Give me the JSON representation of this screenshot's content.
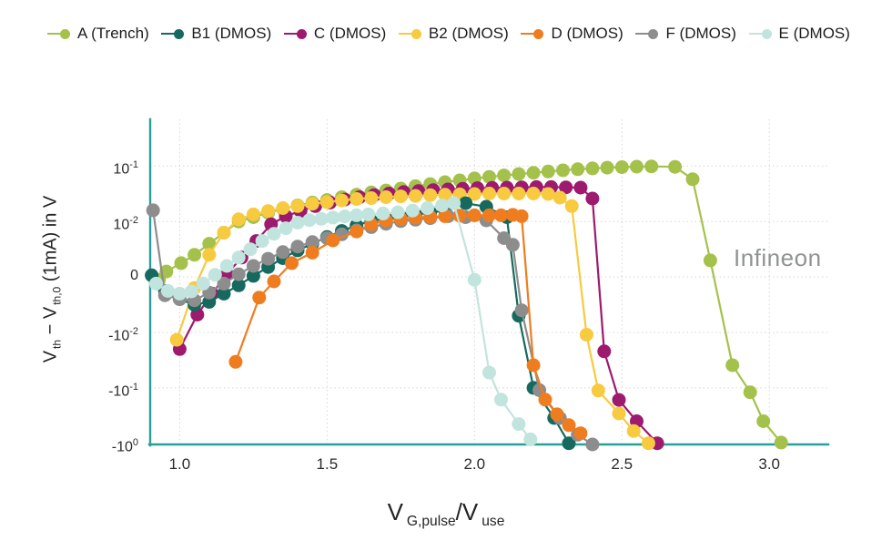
{
  "chart_data": {
    "type": "line",
    "title": "",
    "watermark": "Infineon",
    "grid": true,
    "legend_position": "top",
    "xlim": [
      0.9,
      3.2
    ],
    "ylim": [
      -1.05,
      0.7
    ],
    "y_scale": {
      "type": "symlog",
      "linthresh": 0.01
    },
    "xlabel_segments": [
      {
        "t": "V"
      },
      {
        "s": "G,pulse"
      },
      {
        "t": "/V"
      },
      {
        "s": "use"
      }
    ],
    "ylabel_segments": [
      {
        "t": "V"
      },
      {
        "s": "th"
      },
      {
        "t": " − V"
      },
      {
        "s": "th,0"
      },
      {
        "t": " (1mA) in V"
      }
    ],
    "x_ticks": [
      {
        "label": "1.0",
        "v": 1.0
      },
      {
        "label": "1.5",
        "v": 1.5
      },
      {
        "label": "2.0",
        "v": 2.0
      },
      {
        "label": "2.5",
        "v": 2.5
      },
      {
        "label": "3.0",
        "v": 3.0
      }
    ],
    "y_ticks": [
      {
        "sign": "",
        "base": "10",
        "exp": "-1",
        "v": 0.1
      },
      {
        "sign": "",
        "base": "10",
        "exp": "-2",
        "v": 0.01
      },
      {
        "sign": "",
        "base": "0",
        "exp": "",
        "v": 0
      },
      {
        "sign": "-",
        "base": "10",
        "exp": "-2",
        "v": -0.01
      },
      {
        "sign": "-",
        "base": "10",
        "exp": "-1",
        "v": -0.1
      },
      {
        "sign": "-",
        "base": "10",
        "exp": "0",
        "v": -1
      }
    ],
    "series": [
      {
        "name": "A (Trench)",
        "color": "#a4c24b",
        "points": [
          [
            0.93,
            -0.0005
          ],
          [
            0.955,
            0.001
          ],
          [
            1.005,
            0.0025
          ],
          [
            1.05,
            0.004
          ],
          [
            1.1,
            0.006
          ],
          [
            1.15,
            0.008
          ],
          [
            1.2,
            0.01
          ],
          [
            1.25,
            0.012
          ],
          [
            1.3,
            0.0145
          ],
          [
            1.35,
            0.017
          ],
          [
            1.4,
            0.0195
          ],
          [
            1.45,
            0.022
          ],
          [
            1.5,
            0.0245
          ],
          [
            1.55,
            0.0275
          ],
          [
            1.6,
            0.0305
          ],
          [
            1.65,
            0.0335
          ],
          [
            1.7,
            0.0365
          ],
          [
            1.75,
            0.0395
          ],
          [
            1.8,
            0.0435
          ],
          [
            1.85,
            0.0475
          ],
          [
            1.9,
            0.0515
          ],
          [
            1.95,
            0.0555
          ],
          [
            2.0,
            0.06
          ],
          [
            2.05,
            0.064
          ],
          [
            2.1,
            0.068
          ],
          [
            2.15,
            0.072
          ],
          [
            2.2,
            0.076
          ],
          [
            2.25,
            0.08
          ],
          [
            2.3,
            0.084
          ],
          [
            2.35,
            0.088
          ],
          [
            2.4,
            0.091
          ],
          [
            2.45,
            0.094
          ],
          [
            2.5,
            0.096
          ],
          [
            2.55,
            0.098
          ],
          [
            2.6,
            0.099
          ],
          [
            2.68,
            0.097
          ],
          [
            2.74,
            0.058
          ],
          [
            2.8,
            0.003
          ],
          [
            2.875,
            -0.039
          ],
          [
            2.935,
            -0.12
          ],
          [
            2.98,
            -0.4
          ],
          [
            3.04,
            -0.97
          ]
        ]
      },
      {
        "name": "C (DMOS)",
        "color": "#9d1a6e",
        "points": [
          [
            1.0,
            -0.02
          ],
          [
            1.06,
            -0.0068
          ],
          [
            1.11,
            -0.003
          ],
          [
            1.16,
            0.0005
          ],
          [
            1.21,
            0.0035
          ],
          [
            1.26,
            0.0065
          ],
          [
            1.31,
            0.0095
          ],
          [
            1.36,
            0.0125
          ],
          [
            1.41,
            0.0155
          ],
          [
            1.46,
            0.019
          ],
          [
            1.51,
            0.022
          ],
          [
            1.56,
            0.025
          ],
          [
            1.61,
            0.0275
          ],
          [
            1.66,
            0.03
          ],
          [
            1.71,
            0.032
          ],
          [
            1.76,
            0.034
          ],
          [
            1.81,
            0.0355
          ],
          [
            1.86,
            0.037
          ],
          [
            1.91,
            0.038
          ],
          [
            1.96,
            0.039
          ],
          [
            2.01,
            0.04
          ],
          [
            2.06,
            0.0405
          ],
          [
            2.11,
            0.041
          ],
          [
            2.16,
            0.0415
          ],
          [
            2.21,
            0.042
          ],
          [
            2.26,
            0.042
          ],
          [
            2.31,
            0.0415
          ],
          [
            2.36,
            0.041
          ],
          [
            2.4,
            0.026
          ],
          [
            2.44,
            -0.022
          ],
          [
            2.49,
            -0.165
          ],
          [
            2.55,
            -0.4
          ],
          [
            2.62,
            -1.0
          ]
        ]
      },
      {
        "name": "B2 (DMOS)",
        "color": "#f7ca40",
        "points": [
          [
            0.99,
            -0.0136
          ],
          [
            1.05,
            -0.002
          ],
          [
            1.1,
            0.004
          ],
          [
            1.15,
            0.008
          ],
          [
            1.2,
            0.011
          ],
          [
            1.25,
            0.0135
          ],
          [
            1.3,
            0.0155
          ],
          [
            1.35,
            0.0175
          ],
          [
            1.4,
            0.019
          ],
          [
            1.45,
            0.021
          ],
          [
            1.5,
            0.0225
          ],
          [
            1.55,
            0.024
          ],
          [
            1.6,
            0.0255
          ],
          [
            1.65,
            0.0265
          ],
          [
            1.7,
            0.0275
          ],
          [
            1.75,
            0.0285
          ],
          [
            1.8,
            0.029
          ],
          [
            1.85,
            0.03
          ],
          [
            1.9,
            0.0305
          ],
          [
            1.95,
            0.031
          ],
          [
            2.0,
            0.0315
          ],
          [
            2.05,
            0.032
          ],
          [
            2.1,
            0.032
          ],
          [
            2.15,
            0.032
          ],
          [
            2.2,
            0.032
          ],
          [
            2.25,
            0.0315
          ],
          [
            2.29,
            0.027
          ],
          [
            2.33,
            0.019
          ],
          [
            2.38,
            -0.011
          ],
          [
            2.42,
            -0.112
          ],
          [
            2.49,
            -0.29
          ],
          [
            2.54,
            -0.6
          ],
          [
            2.59,
            -1.0
          ]
        ]
      },
      {
        "name": "B1 (DMOS)",
        "color": "#16695e",
        "points": [
          [
            0.905,
            0.0003
          ],
          [
            0.95,
            -0.0025
          ],
          [
            1.0,
            -0.004
          ],
          [
            1.05,
            -0.005
          ],
          [
            1.1,
            -0.0045
          ],
          [
            1.15,
            -0.003
          ],
          [
            1.2,
            -0.0015
          ],
          [
            1.25,
            0.0002
          ],
          [
            1.3,
            0.0018
          ],
          [
            1.35,
            0.0034
          ],
          [
            1.4,
            0.0048
          ],
          [
            1.45,
            0.006
          ],
          [
            1.5,
            0.0072
          ],
          [
            1.55,
            0.0083
          ],
          [
            1.6,
            0.0093
          ],
          [
            1.65,
            0.0103
          ],
          [
            1.7,
            0.0113
          ],
          [
            1.75,
            0.0123
          ],
          [
            1.8,
            0.0133
          ],
          [
            1.85,
            0.0145
          ],
          [
            1.9,
            0.016
          ],
          [
            1.97,
            0.0215
          ],
          [
            2.04,
            0.0185
          ],
          [
            2.11,
            0.012
          ],
          [
            2.15,
            -0.007
          ],
          [
            2.2,
            -0.1
          ],
          [
            2.27,
            -0.35
          ],
          [
            2.32,
            -1.0
          ]
        ]
      },
      {
        "name": "F (DMOS)",
        "color": "#8d8d8d",
        "points": [
          [
            0.91,
            0.016
          ],
          [
            0.95,
            -0.0033
          ],
          [
            1.0,
            -0.004
          ],
          [
            1.05,
            -0.0042
          ],
          [
            1.1,
            -0.0028
          ],
          [
            1.15,
            -0.0012
          ],
          [
            1.2,
            0.0005
          ],
          [
            1.25,
            0.002
          ],
          [
            1.3,
            0.0033
          ],
          [
            1.35,
            0.0045
          ],
          [
            1.4,
            0.0055
          ],
          [
            1.45,
            0.0063
          ],
          [
            1.5,
            0.007
          ],
          [
            1.55,
            0.0077
          ],
          [
            1.6,
            0.0084
          ],
          [
            1.65,
            0.009
          ],
          [
            1.7,
            0.0096
          ],
          [
            1.75,
            0.0102
          ],
          [
            1.8,
            0.0108
          ],
          [
            1.85,
            0.0115
          ],
          [
            1.91,
            0.0125
          ],
          [
            1.97,
            0.012
          ],
          [
            2.04,
            0.0105
          ],
          [
            2.1,
            0.007
          ],
          [
            2.13,
            0.0058
          ],
          [
            2.16,
            -0.006
          ],
          [
            2.22,
            -0.11
          ],
          [
            2.29,
            -0.35
          ],
          [
            2.35,
            -0.7
          ],
          [
            2.4,
            -1.05
          ]
        ]
      },
      {
        "name": "D (DMOS)",
        "color": "#ef7d20",
        "points": [
          [
            1.19,
            -0.034
          ],
          [
            1.27,
            -0.0037
          ],
          [
            1.32,
            -0.0008
          ],
          [
            1.38,
            0.0025
          ],
          [
            1.45,
            0.0044
          ],
          [
            1.52,
            0.0066
          ],
          [
            1.6,
            0.0082
          ],
          [
            1.65,
            0.0095
          ],
          [
            1.7,
            0.0105
          ],
          [
            1.75,
            0.0112
          ],
          [
            1.8,
            0.0118
          ],
          [
            1.85,
            0.0122
          ],
          [
            1.9,
            0.0125
          ],
          [
            1.95,
            0.0128
          ],
          [
            2.0,
            0.013
          ],
          [
            2.05,
            0.013
          ],
          [
            2.09,
            0.013
          ],
          [
            2.13,
            0.0132
          ],
          [
            2.16,
            0.0125
          ],
          [
            2.2,
            -0.039
          ],
          [
            2.24,
            -0.163
          ],
          [
            2.28,
            -0.3
          ],
          [
            2.32,
            -0.47
          ],
          [
            2.36,
            -0.66
          ]
        ]
      },
      {
        "name": "E (DMOS)",
        "color": "#c2e4de",
        "points": [
          [
            0.92,
            -0.0012
          ],
          [
            0.96,
            -0.0025
          ],
          [
            1.0,
            -0.003
          ],
          [
            1.04,
            -0.0026
          ],
          [
            1.08,
            -0.0012
          ],
          [
            1.12,
            0.0004
          ],
          [
            1.16,
            0.002
          ],
          [
            1.2,
            0.0035
          ],
          [
            1.24,
            0.005
          ],
          [
            1.28,
            0.0065
          ],
          [
            1.32,
            0.0078
          ],
          [
            1.36,
            0.0088
          ],
          [
            1.4,
            0.0098
          ],
          [
            1.44,
            0.0106
          ],
          [
            1.48,
            0.0112
          ],
          [
            1.52,
            0.0118
          ],
          [
            1.56,
            0.0124
          ],
          [
            1.6,
            0.013
          ],
          [
            1.64,
            0.0135
          ],
          [
            1.69,
            0.014
          ],
          [
            1.74,
            0.0147
          ],
          [
            1.79,
            0.0158
          ],
          [
            1.84,
            0.0175
          ],
          [
            1.89,
            0.0195
          ],
          [
            1.93,
            0.0215
          ],
          [
            2.0,
            -0.0005
          ],
          [
            2.05,
            -0.053
          ],
          [
            2.09,
            -0.163
          ],
          [
            2.15,
            -0.45
          ],
          [
            2.19,
            -0.85
          ]
        ]
      }
    ],
    "legend_order": [
      "A (Trench)",
      "B1 (DMOS)",
      "C (DMOS)",
      "B2 (DMOS)",
      "D (DMOS)",
      "F (DMOS)",
      "E (DMOS)"
    ]
  },
  "colors": {
    "axis": "#2aa09a",
    "grid": "#d6d6d6",
    "tick_text": "#2b2b2b",
    "watermark": "#8f9393"
  }
}
